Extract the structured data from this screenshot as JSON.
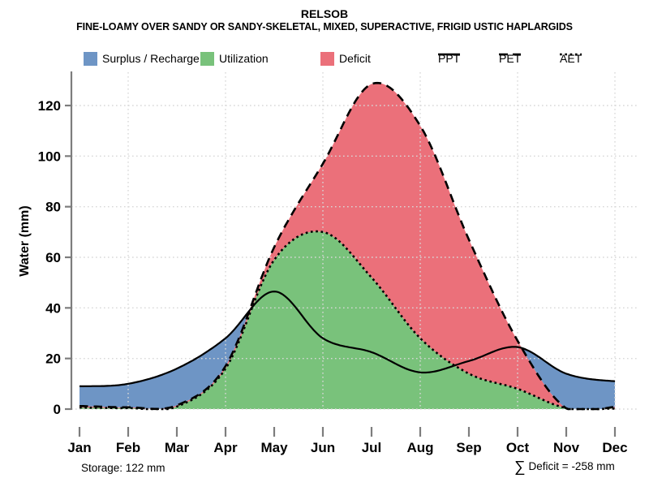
{
  "header": {
    "title": "RELSOB",
    "subtitle": "FINE-LOAMY OVER SANDY OR SANDY-SKELETAL, MIXED, SUPERACTIVE, FRIGID USTIC HAPLARGIDS"
  },
  "legend": {
    "fills": [
      {
        "label": "Surplus / Recharge",
        "color": "#6e95c5"
      },
      {
        "label": "Utilization",
        "color": "#79c27b"
      },
      {
        "label": "Deficit",
        "color": "#eb707a"
      }
    ],
    "lines": [
      {
        "label": "PPT",
        "style": "solid"
      },
      {
        "label": "PET",
        "style": "dashed"
      },
      {
        "label": "AET",
        "style": "dotted"
      }
    ]
  },
  "footer": {
    "storage": "Storage: 122 mm",
    "deficit_sigma": "∑",
    "deficit_text": "Deficit = -258 mm"
  },
  "chart_data": {
    "type": "area",
    "title": "RELSOB",
    "subtitle": "FINE-LOAMY OVER SANDY OR SANDY-SKELETAL, MIXED, SUPERACTIVE, FRIGID USTIC HAPLARGIDS",
    "x_categories": [
      "Jan",
      "Feb",
      "Mar",
      "Apr",
      "May",
      "Jun",
      "Jul",
      "Aug",
      "Sep",
      "Oct",
      "Nov",
      "Dec"
    ],
    "ylabel": "Water (mm)",
    "ylim": [
      0,
      130
    ],
    "yticks": [
      0,
      20,
      40,
      60,
      80,
      100,
      120
    ],
    "grid": {
      "style": "dotted",
      "vertical_at_months": [
        "Feb",
        "Apr",
        "Jun",
        "Aug",
        "Oct",
        "Dec"
      ]
    },
    "series": [
      {
        "name": "PPT",
        "style": "solid",
        "values": [
          9,
          10,
          16,
          28,
          46.5,
          28,
          22.5,
          14.5,
          19,
          24.5,
          14,
          11
        ]
      },
      {
        "name": "PET",
        "style": "dashed",
        "values": [
          1.2,
          0.7,
          1.5,
          17,
          64,
          97,
          128.5,
          112,
          67,
          27,
          0.3,
          0.8
        ]
      },
      {
        "name": "AET",
        "style": "dotted",
        "values": [
          0.6,
          0.4,
          1,
          16,
          59,
          70,
          52,
          28,
          14,
          8,
          0.4,
          0.2
        ]
      }
    ],
    "areas": [
      {
        "label": "Surplus / Recharge",
        "color": "#6e95c5",
        "between": "PPT over PET where PPT > PET"
      },
      {
        "label": "Utilization",
        "color": "#79c27b",
        "between": "area under AET"
      },
      {
        "label": "Deficit",
        "color": "#eb707a",
        "between": "PET over AET where PET > AET"
      }
    ],
    "annotations": {
      "storage": "Storage: 122 mm",
      "deficit_total": "∑ Deficit = -258 mm"
    },
    "legend_position": "top"
  },
  "colors": {
    "surplus": "#6e95c5",
    "utilization": "#79c27b",
    "deficit": "#eb707a",
    "line": "#000000",
    "grid": "#d8d8d8",
    "axis": "#7d7d7d"
  }
}
